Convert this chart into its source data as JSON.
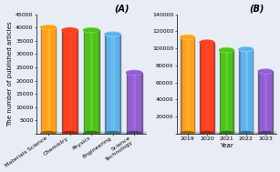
{
  "panel_A": {
    "categories": [
      "Materials Science",
      "Chemistry",
      "Physics",
      "Engineering",
      "Science\nTechnology"
    ],
    "values": [
      40000,
      39000,
      39000,
      37500,
      23000
    ],
    "colors": [
      "#FFA020",
      "#FF4020",
      "#50C020",
      "#60B0E8",
      "#9060CC"
    ],
    "ylabel": "The number of published articles",
    "ylim": [
      0,
      45000
    ],
    "yticks": [
      0,
      5000,
      10000,
      15000,
      20000,
      25000,
      30000,
      35000,
      40000,
      45000
    ],
    "label": "(A)"
  },
  "panel_B": {
    "categories": [
      "2019",
      "2020",
      "2021",
      "2022",
      "2023"
    ],
    "values": [
      113000,
      107000,
      98000,
      99000,
      73000
    ],
    "colors": [
      "#FFA020",
      "#FF4020",
      "#50C020",
      "#60B0E8",
      "#9060CC"
    ],
    "xlabel": "Year",
    "ylim": [
      0,
      140000
    ],
    "yticks": [
      0,
      20000,
      40000,
      60000,
      80000,
      100000,
      120000,
      140000
    ],
    "label": "(B)"
  },
  "background_color": "#FFFFFF",
  "fig_bg": "#E8EDF5",
  "title_fontsize": 7,
  "tick_fontsize": 4.5,
  "label_fontsize": 5,
  "bar_width": 0.72
}
